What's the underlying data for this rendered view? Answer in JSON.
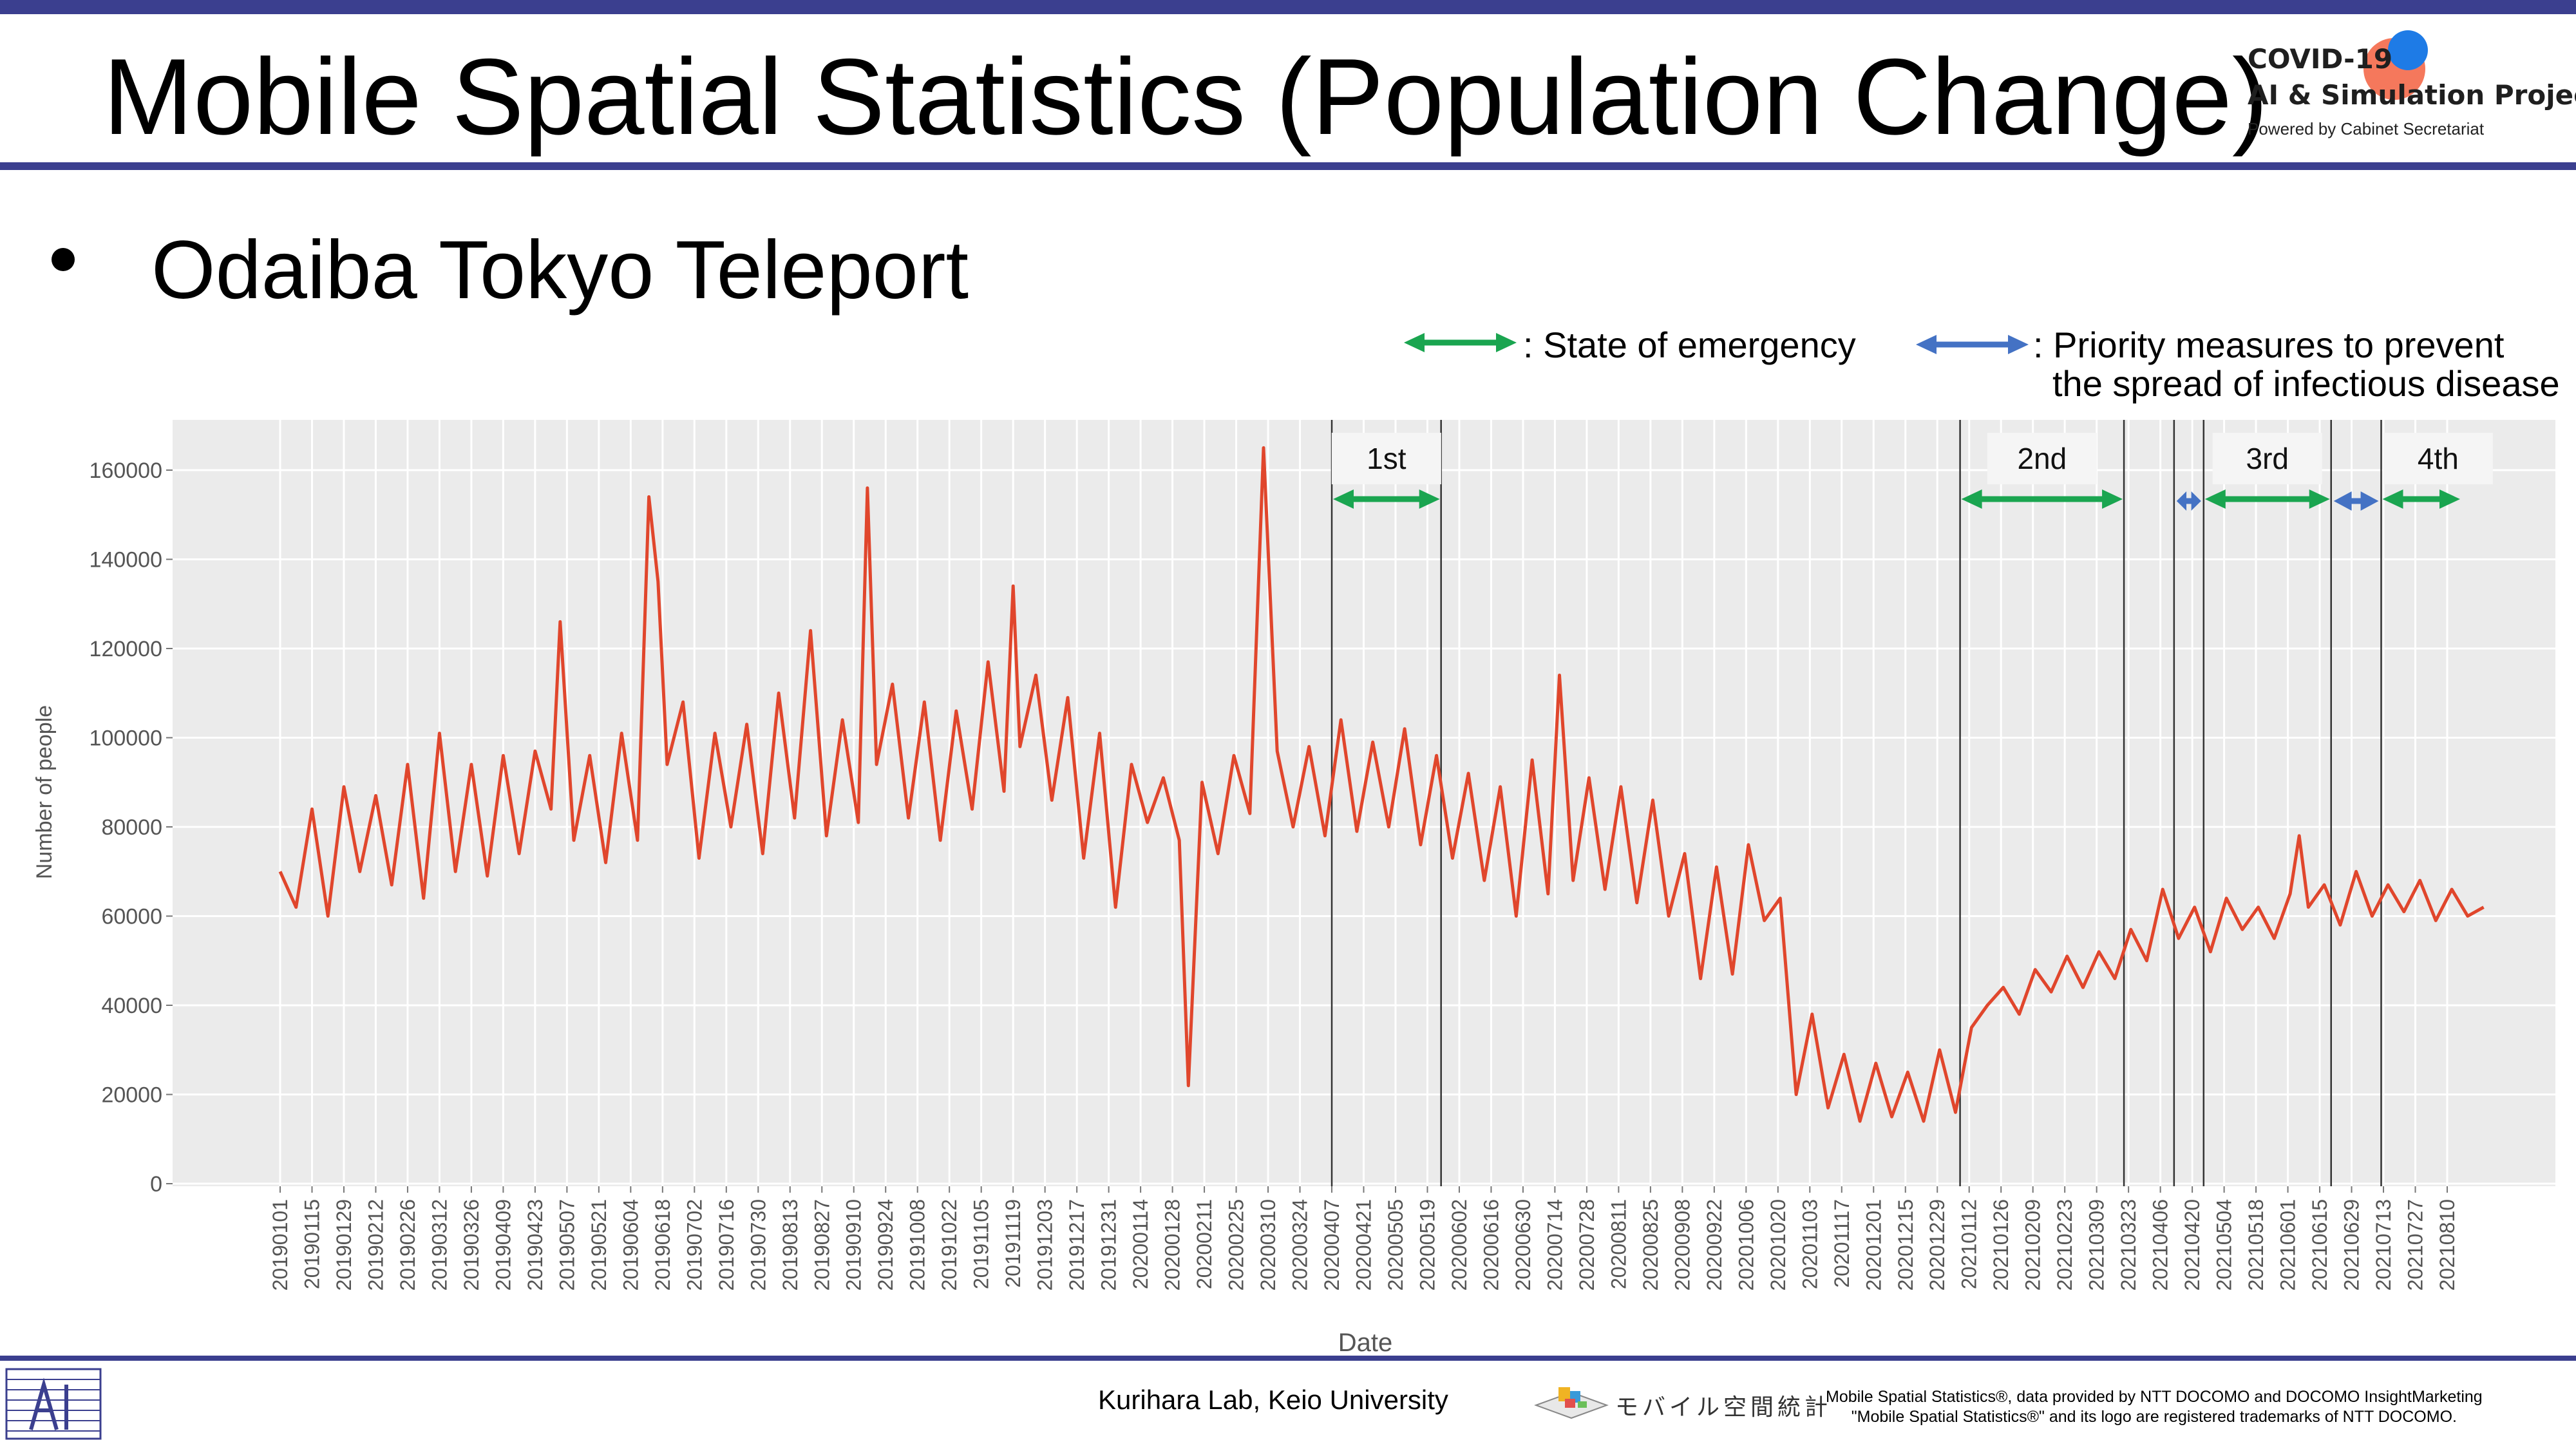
{
  "slide": {
    "title": "Mobile Spatial Statistics (Population Change)",
    "bullet": "Odaiba Tokyo Teleport",
    "logo": {
      "line1": "COVID-19",
      "line2": "AI & Simulation Project",
      "line3": "Powered by Cabinet Secretariat"
    },
    "footer": {
      "lab": "Kurihara Lab, Keio University",
      "mobile_logo_text": "モバイル空間統計",
      "ntt_line1": "Mobile Spatial Statistics®, data provided by NTT DOCOMO and DOCOMO InsightMarketing",
      "ntt_line2": "\"Mobile Spatial Statistics®\" and its logo are registered trademarks of NTT DOCOMO."
    },
    "legend": {
      "emergency": ": State of emergency",
      "priority_line1": ": Priority measures to prevent",
      "priority_line2": "the spread of infectious disease"
    },
    "colors": {
      "accent_bar": "#3b3f8f",
      "emergency_arrow": "#1aa550",
      "priority_arrow": "#4472c4",
      "series_line": "#e0462c",
      "plot_bg": "#ebebeb"
    }
  },
  "chart_data": {
    "type": "line",
    "xlabel": "Date",
    "ylabel": "Number of people",
    "ylim": [
      0,
      170000
    ],
    "y_ticks": [
      0,
      20000,
      40000,
      60000,
      80000,
      100000,
      120000,
      140000,
      160000
    ],
    "x_tick_labels": [
      "20190101",
      "20190115",
      "20190129",
      "20190212",
      "20190226",
      "20190312",
      "20190326",
      "20190409",
      "20190423",
      "20190507",
      "20190521",
      "20190604",
      "20190618",
      "20190702",
      "20190716",
      "20190730",
      "20190813",
      "20190827",
      "20190910",
      "20190924",
      "20191008",
      "20191022",
      "20191105",
      "20191119",
      "20191203",
      "20191217",
      "20191231",
      "20200114",
      "20200128",
      "20200211",
      "20200225",
      "20200310",
      "20200324",
      "20200407",
      "20200421",
      "20200505",
      "20200519",
      "20200602",
      "20200616",
      "20200630",
      "20200714",
      "20200728",
      "20200811",
      "20200825",
      "20200908",
      "20200922",
      "20201006",
      "20201020",
      "20201103",
      "20201117",
      "20201201",
      "20201215",
      "20201229",
      "20210112",
      "20210126",
      "20210209",
      "20210223",
      "20210309",
      "20210323",
      "20210406",
      "20210420",
      "20210504",
      "20210518",
      "20210601",
      "20210615",
      "20210629",
      "20210713",
      "20210727",
      "20210810"
    ],
    "x_start": "2019-01-01",
    "x_end": "2021-08-15",
    "grid": true,
    "series": [
      {
        "points": [
          [
            "2019-01-01",
            70000
          ],
          [
            "2019-01-08",
            62000
          ],
          [
            "2019-01-15",
            84000
          ],
          [
            "2019-01-22",
            60000
          ],
          [
            "2019-01-29",
            89000
          ],
          [
            "2019-02-05",
            70000
          ],
          [
            "2019-02-12",
            87000
          ],
          [
            "2019-02-19",
            67000
          ],
          [
            "2019-02-26",
            94000
          ],
          [
            "2019-03-05",
            64000
          ],
          [
            "2019-03-12",
            101000
          ],
          [
            "2019-03-19",
            70000
          ],
          [
            "2019-03-26",
            94000
          ],
          [
            "2019-04-02",
            69000
          ],
          [
            "2019-04-09",
            96000
          ],
          [
            "2019-04-16",
            74000
          ],
          [
            "2019-04-23",
            97000
          ],
          [
            "2019-04-30",
            84000
          ],
          [
            "2019-05-04",
            126000
          ],
          [
            "2019-05-10",
            77000
          ],
          [
            "2019-05-17",
            96000
          ],
          [
            "2019-05-24",
            72000
          ],
          [
            "2019-05-31",
            101000
          ],
          [
            "2019-06-07",
            77000
          ],
          [
            "2019-06-12",
            154000
          ],
          [
            "2019-06-16",
            135000
          ],
          [
            "2019-06-20",
            94000
          ],
          [
            "2019-06-27",
            108000
          ],
          [
            "2019-07-04",
            73000
          ],
          [
            "2019-07-11",
            101000
          ],
          [
            "2019-07-18",
            80000
          ],
          [
            "2019-07-25",
            103000
          ],
          [
            "2019-08-01",
            74000
          ],
          [
            "2019-08-08",
            110000
          ],
          [
            "2019-08-15",
            82000
          ],
          [
            "2019-08-22",
            124000
          ],
          [
            "2019-08-29",
            78000
          ],
          [
            "2019-09-05",
            104000
          ],
          [
            "2019-09-12",
            81000
          ],
          [
            "2019-09-16",
            156000
          ],
          [
            "2019-09-20",
            94000
          ],
          [
            "2019-09-27",
            112000
          ],
          [
            "2019-10-04",
            82000
          ],
          [
            "2019-10-11",
            108000
          ],
          [
            "2019-10-18",
            77000
          ],
          [
            "2019-10-25",
            106000
          ],
          [
            "2019-11-01",
            84000
          ],
          [
            "2019-11-08",
            117000
          ],
          [
            "2019-11-15",
            88000
          ],
          [
            "2019-11-19",
            134000
          ],
          [
            "2019-11-22",
            98000
          ],
          [
            "2019-11-29",
            114000
          ],
          [
            "2019-12-06",
            86000
          ],
          [
            "2019-12-13",
            109000
          ],
          [
            "2019-12-20",
            73000
          ],
          [
            "2019-12-27",
            101000
          ],
          [
            "2020-01-03",
            62000
          ],
          [
            "2020-01-10",
            94000
          ],
          [
            "2020-01-17",
            81000
          ],
          [
            "2020-01-24",
            91000
          ],
          [
            "2020-01-31",
            77000
          ],
          [
            "2020-02-04",
            22000
          ],
          [
            "2020-02-10",
            90000
          ],
          [
            "2020-02-17",
            74000
          ],
          [
            "2020-02-24",
            96000
          ],
          [
            "2020-03-02",
            83000
          ],
          [
            "2020-03-08",
            165000
          ],
          [
            "2020-03-14",
            97000
          ],
          [
            "2020-03-21",
            80000
          ],
          [
            "2020-03-28",
            98000
          ],
          [
            "2020-04-04",
            78000
          ],
          [
            "2020-04-11",
            104000
          ],
          [
            "2020-04-18",
            79000
          ],
          [
            "2020-04-25",
            99000
          ],
          [
            "2020-05-02",
            80000
          ],
          [
            "2020-05-09",
            102000
          ],
          [
            "2020-05-16",
            76000
          ],
          [
            "2020-05-23",
            96000
          ],
          [
            "2020-05-30",
            73000
          ],
          [
            "2020-06-06",
            92000
          ],
          [
            "2020-06-13",
            68000
          ],
          [
            "2020-06-20",
            89000
          ],
          [
            "2020-06-27",
            60000
          ],
          [
            "2020-07-04",
            95000
          ],
          [
            "2020-07-11",
            65000
          ],
          [
            "2020-07-16",
            114000
          ],
          [
            "2020-07-22",
            68000
          ],
          [
            "2020-07-29",
            91000
          ],
          [
            "2020-08-05",
            66000
          ],
          [
            "2020-08-12",
            89000
          ],
          [
            "2020-08-19",
            63000
          ],
          [
            "2020-08-26",
            86000
          ],
          [
            "2020-09-02",
            60000
          ],
          [
            "2020-09-09",
            74000
          ],
          [
            "2020-09-16",
            46000
          ],
          [
            "2020-09-23",
            71000
          ],
          [
            "2020-09-30",
            47000
          ],
          [
            "2020-10-07",
            76000
          ],
          [
            "2020-10-14",
            59000
          ],
          [
            "2020-10-21",
            64000
          ],
          [
            "2020-10-28",
            20000
          ],
          [
            "2020-11-04",
            38000
          ],
          [
            "2020-11-11",
            17000
          ],
          [
            "2020-11-18",
            29000
          ],
          [
            "2020-11-25",
            14000
          ],
          [
            "2020-12-02",
            27000
          ],
          [
            "2020-12-09",
            15000
          ],
          [
            "2020-12-16",
            25000
          ],
          [
            "2020-12-23",
            14000
          ],
          [
            "2020-12-30",
            30000
          ],
          [
            "2021-01-06",
            16000
          ],
          [
            "2021-01-13",
            35000
          ],
          [
            "2021-01-20",
            40000
          ],
          [
            "2021-01-27",
            44000
          ],
          [
            "2021-02-03",
            38000
          ],
          [
            "2021-02-10",
            48000
          ],
          [
            "2021-02-17",
            43000
          ],
          [
            "2021-02-24",
            51000
          ],
          [
            "2021-03-03",
            44000
          ],
          [
            "2021-03-10",
            52000
          ],
          [
            "2021-03-17",
            46000
          ],
          [
            "2021-03-24",
            57000
          ],
          [
            "2021-03-31",
            50000
          ],
          [
            "2021-04-07",
            66000
          ],
          [
            "2021-04-14",
            55000
          ],
          [
            "2021-04-21",
            62000
          ],
          [
            "2021-04-28",
            52000
          ],
          [
            "2021-05-05",
            64000
          ],
          [
            "2021-05-12",
            57000
          ],
          [
            "2021-05-19",
            62000
          ],
          [
            "2021-05-26",
            55000
          ],
          [
            "2021-06-02",
            65000
          ],
          [
            "2021-06-06",
            78000
          ],
          [
            "2021-06-10",
            62000
          ],
          [
            "2021-06-17",
            67000
          ],
          [
            "2021-06-24",
            58000
          ],
          [
            "2021-07-01",
            70000
          ],
          [
            "2021-07-08",
            60000
          ],
          [
            "2021-07-15",
            67000
          ],
          [
            "2021-07-22",
            61000
          ],
          [
            "2021-07-29",
            68000
          ],
          [
            "2021-08-05",
            59000
          ],
          [
            "2021-08-12",
            66000
          ],
          [
            "2021-08-19",
            60000
          ],
          [
            "2021-08-26",
            62000
          ]
        ]
      }
    ],
    "annotations": {
      "vertical_lines": [
        "2020-04-07",
        "2020-05-25",
        "2021-01-08",
        "2021-03-21",
        "2021-04-12",
        "2021-04-25",
        "2021-06-20",
        "2021-07-12"
      ],
      "period_labels": [
        {
          "label": "1st",
          "start": "2020-04-07",
          "end": "2020-05-25"
        },
        {
          "label": "2nd",
          "start": "2021-01-08",
          "end": "2021-03-21"
        },
        {
          "label": "3rd",
          "start": "2021-04-25",
          "end": "2021-06-20"
        },
        {
          "label": "4th",
          "start": "2021-07-12",
          "end": "2021-08-31"
        }
      ],
      "emergency_arrows": [
        [
          "2020-04-07",
          "2020-05-25"
        ],
        [
          "2021-01-08",
          "2021-03-21"
        ],
        [
          "2021-04-25",
          "2021-06-20"
        ],
        [
          "2021-07-12",
          "2021-08-31"
        ]
      ],
      "priority_arrows": [
        [
          "2021-04-12",
          "2021-04-25"
        ],
        [
          "2021-06-20",
          "2021-07-12"
        ]
      ]
    }
  }
}
